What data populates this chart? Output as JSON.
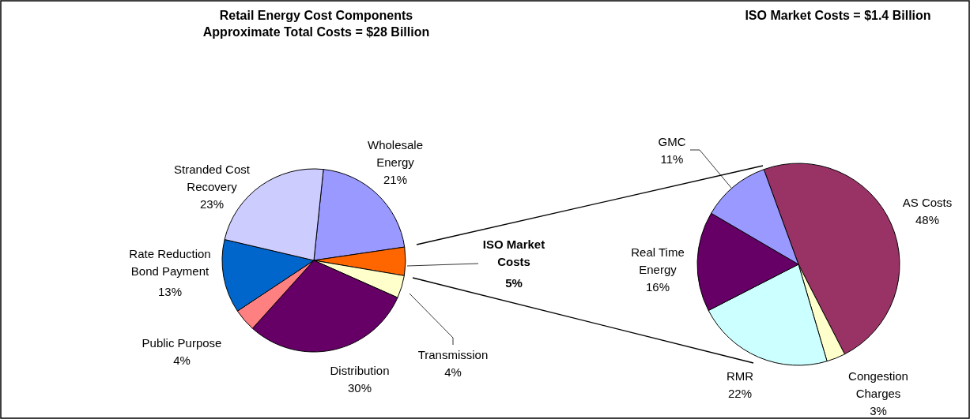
{
  "chart_data": [
    {
      "type": "pie",
      "title": "Retail Energy Cost Components",
      "subtitle": "Approximate Total Costs = $28 Billion",
      "categories": [
        "Wholesale Energy",
        "ISO Market Costs",
        "Transmission",
        "Distribution",
        "Public Purpose",
        "Rate Reduction Bond Payment",
        "Stranded Cost Recovery"
      ],
      "values": [
        21,
        5,
        4,
        30,
        4,
        13,
        23
      ],
      "value_labels": [
        "21%",
        "5%",
        "4%",
        "30%",
        "4%",
        "13%",
        "23%"
      ],
      "colors": [
        "#9999ff",
        "#ff6600",
        "#ffffcc",
        "#660066",
        "#ff8080",
        "#0066cc",
        "#ccccff"
      ]
    },
    {
      "type": "pie",
      "title": "ISO Market Costs = $1.4 Billion",
      "categories": [
        "AS Costs",
        "Congestion Charges",
        "RMR",
        "Real Time Energy",
        "GMC"
      ],
      "values": [
        48,
        3,
        22,
        16,
        11
      ],
      "value_labels": [
        "48%",
        "3%",
        "22%",
        "16%",
        "11%"
      ],
      "colors": [
        "#993366",
        "#ffffcc",
        "#ccffff",
        "#660066",
        "#9999ff"
      ]
    }
  ]
}
